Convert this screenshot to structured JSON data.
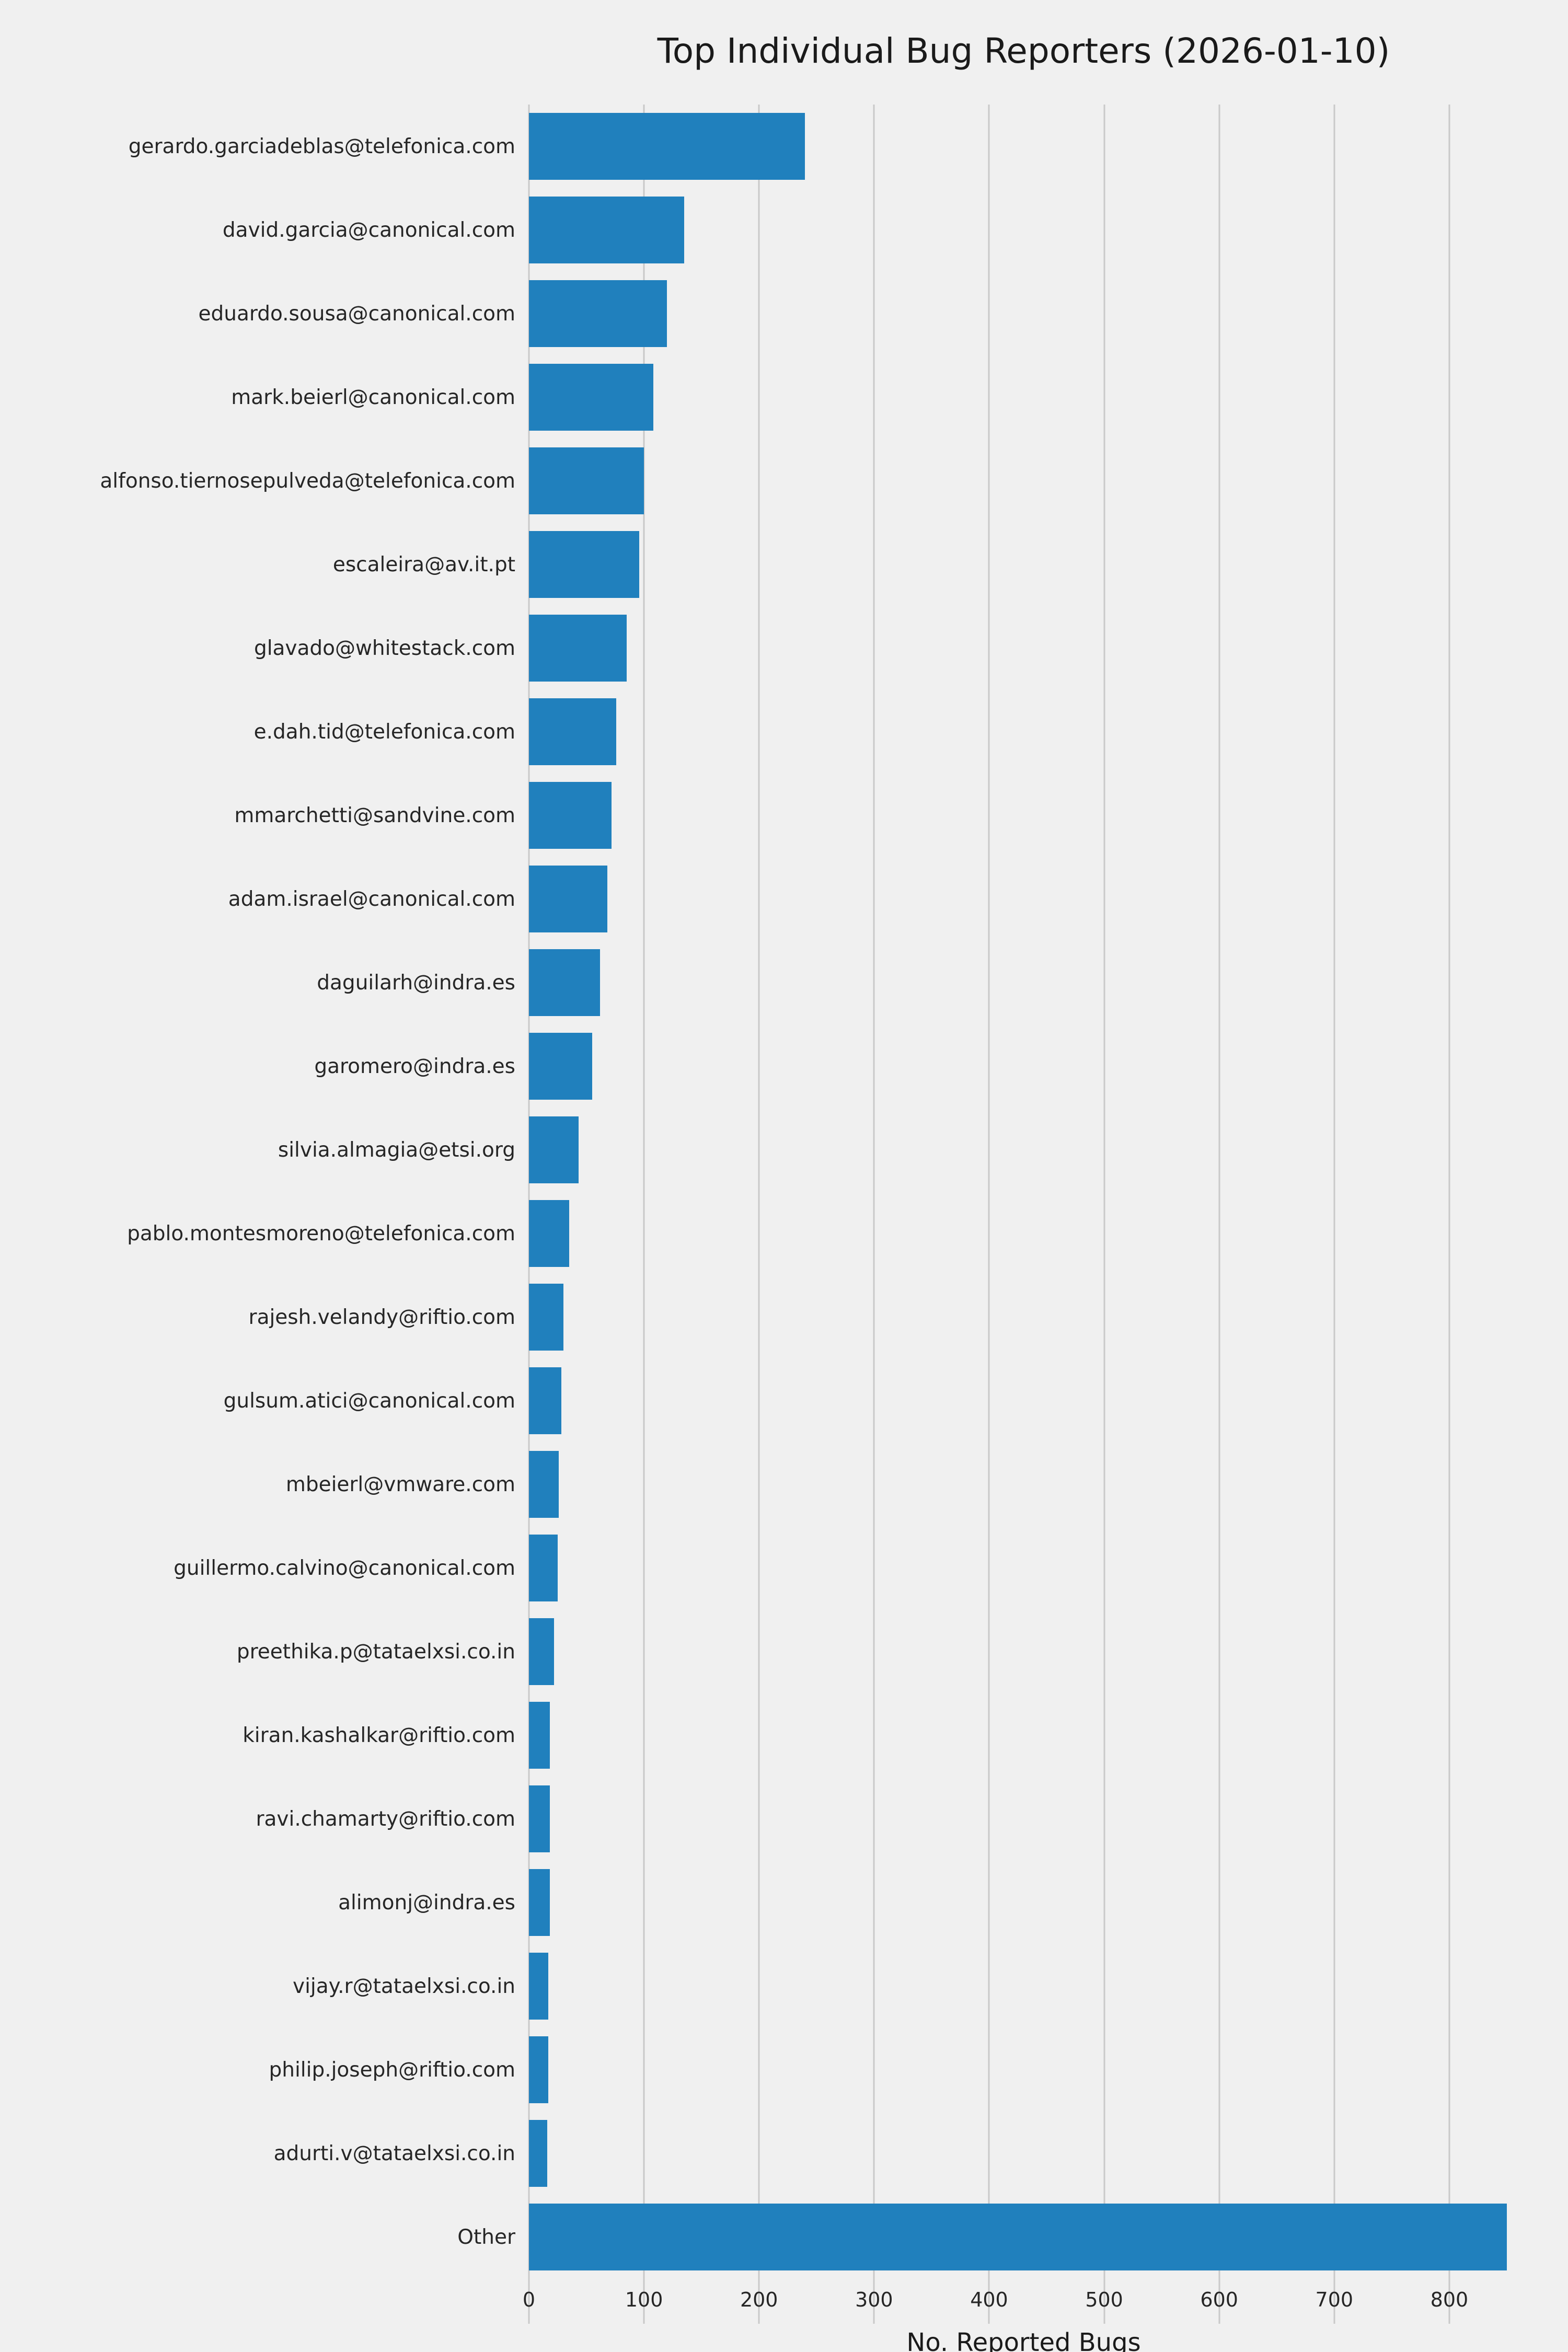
{
  "chart_data": {
    "type": "bar",
    "orientation": "horizontal",
    "title": "Top Individual Bug Reporters (2026-01-10)",
    "xlabel": "No. Reported Bugs",
    "ylabel": "",
    "xlim": [
      0,
      860
    ],
    "xticks": [
      0,
      100,
      200,
      300,
      400,
      500,
      600,
      700,
      800
    ],
    "grid": true,
    "legend": "none",
    "bar_color": "#2080bd",
    "background_color": "#f0f0f0",
    "gridline_color": "#c9c9c9",
    "categories": [
      "gerardo.garciadeblas@telefonica.com",
      "david.garcia@canonical.com",
      "eduardo.sousa@canonical.com",
      "mark.beierl@canonical.com",
      "alfonso.tiernosepulveda@telefonica.com",
      "escaleira@av.it.pt",
      "glavado@whitestack.com",
      "e.dah.tid@telefonica.com",
      "mmarchetti@sandvine.com",
      "adam.israel@canonical.com",
      "daguilarh@indra.es",
      "garomero@indra.es",
      "silvia.almagia@etsi.org",
      "pablo.montesmoreno@telefonica.com",
      "rajesh.velandy@riftio.com",
      "gulsum.atici@canonical.com",
      "mbeierl@vmware.com",
      "guillermo.calvino@canonical.com",
      "preethika.p@tataelxsi.co.in",
      "kiran.kashalkar@riftio.com",
      "ravi.chamarty@riftio.com",
      "alimonj@indra.es",
      "vijay.r@tataelxsi.co.in",
      "philip.joseph@riftio.com",
      "adurti.v@tataelxsi.co.in",
      "Other"
    ],
    "values": [
      240,
      135,
      120,
      108,
      100,
      96,
      85,
      76,
      72,
      68,
      62,
      55,
      43,
      35,
      30,
      28,
      26,
      25,
      22,
      18,
      18,
      18,
      17,
      17,
      16,
      850
    ]
  }
}
